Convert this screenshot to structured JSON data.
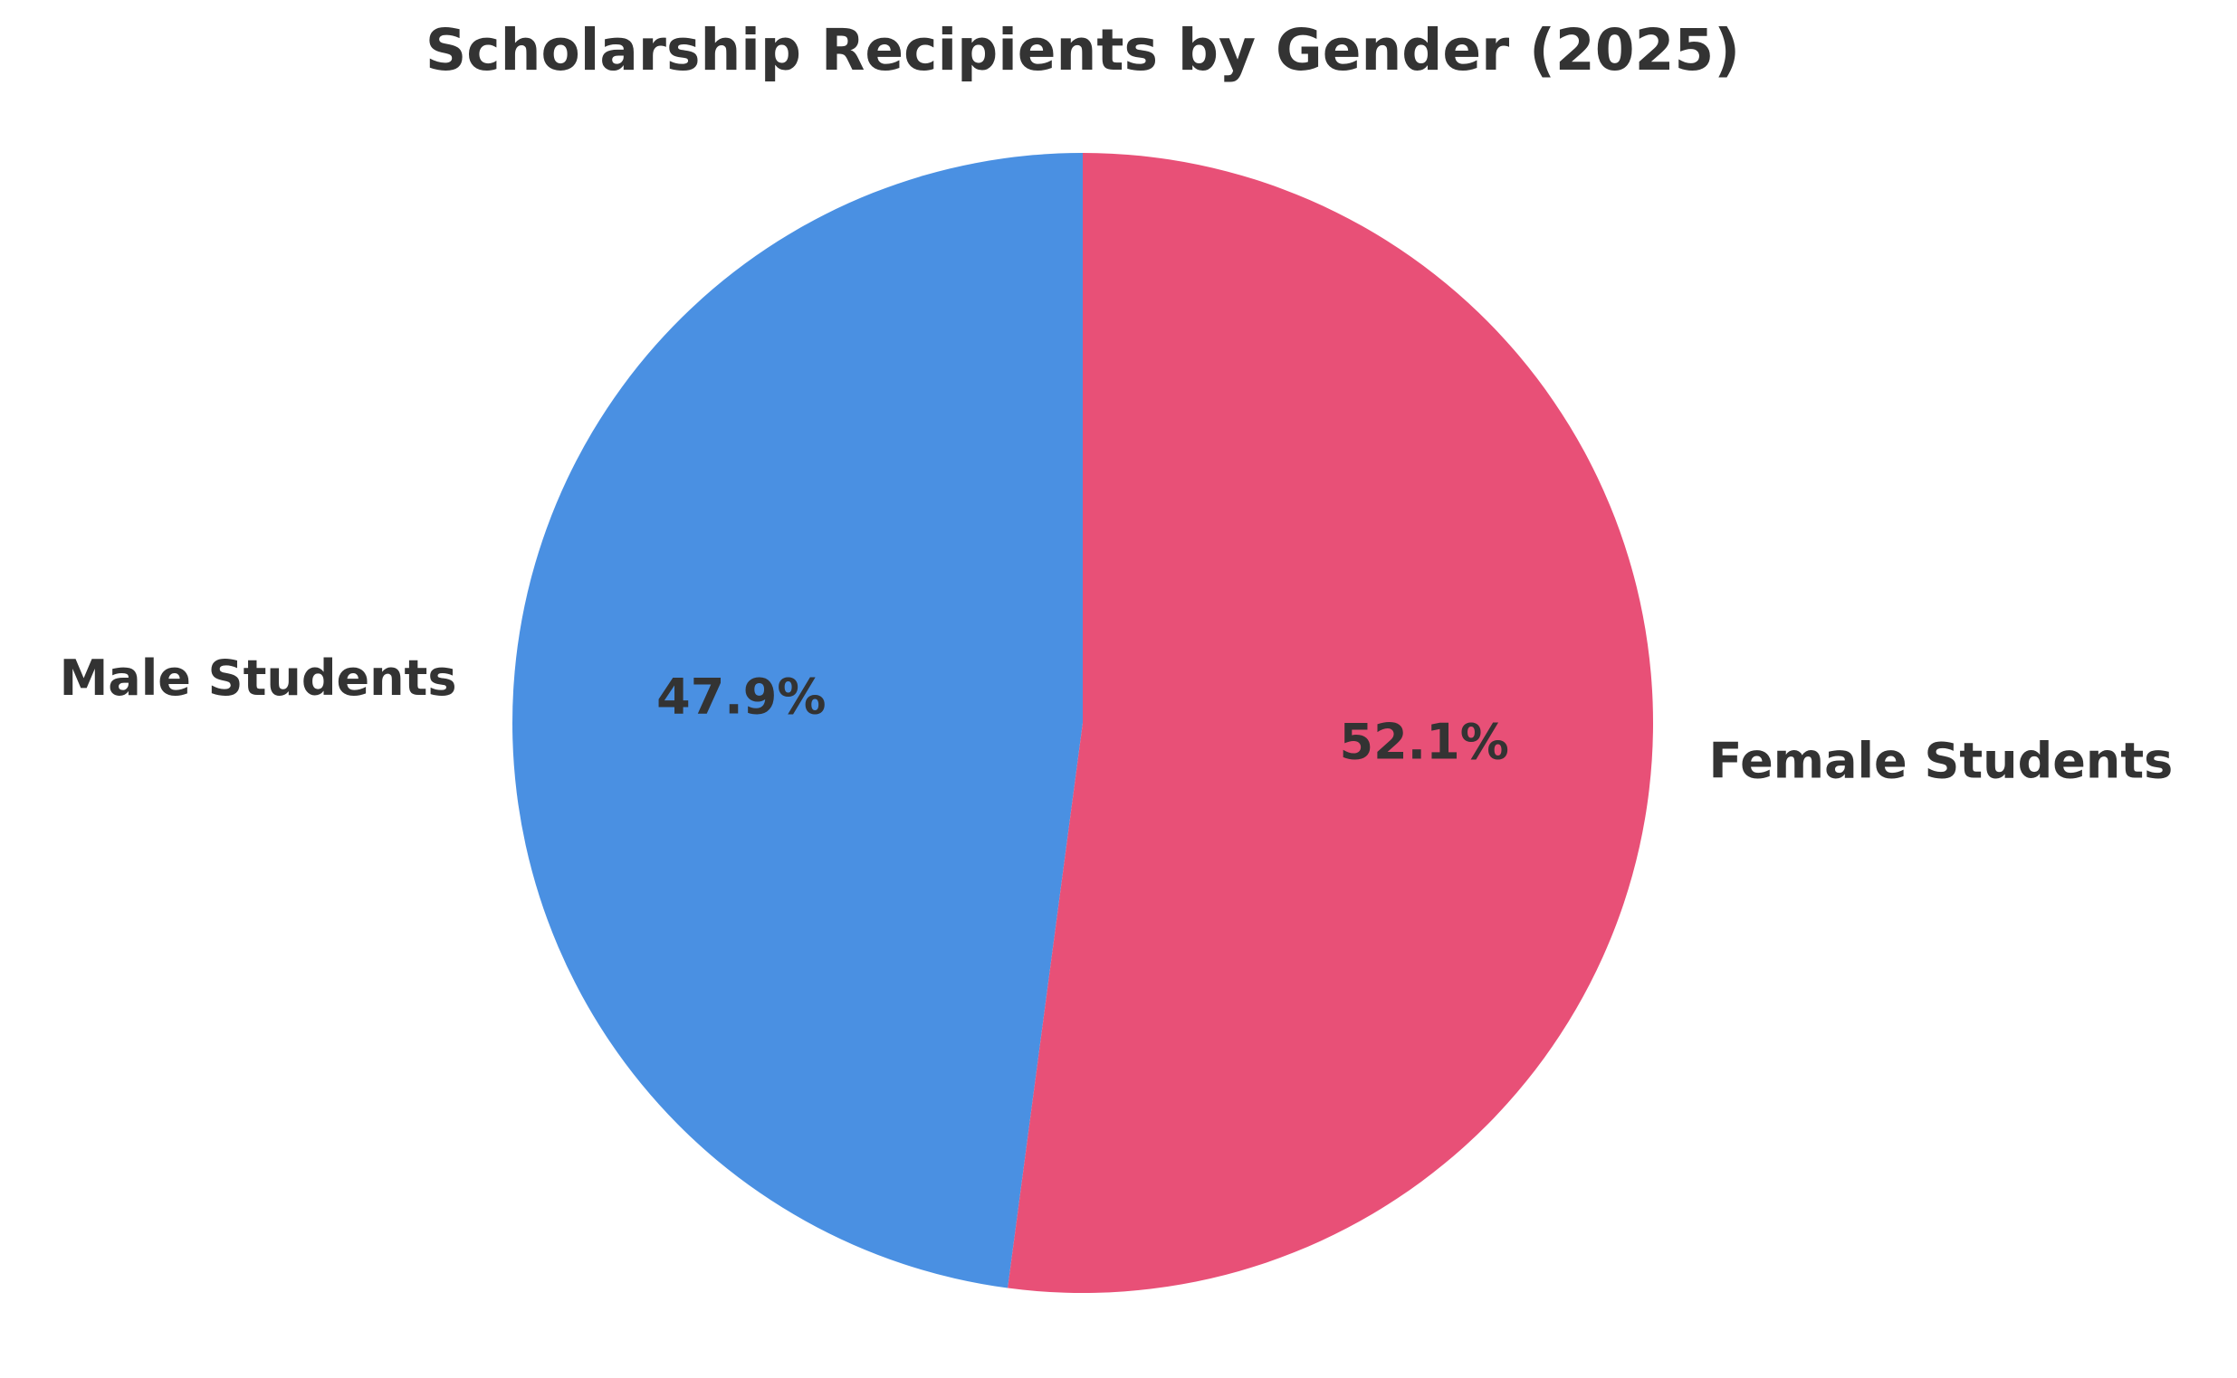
{
  "chart_data": {
    "type": "pie",
    "title": "Scholarship Recipients by Gender (2025)",
    "categories": [
      "Male Students",
      "Female Students"
    ],
    "values": [
      47.9,
      52.1
    ],
    "value_labels": [
      "47.9%",
      "52.1%"
    ],
    "colors": [
      "#4a90e2",
      "#e85077"
    ]
  }
}
